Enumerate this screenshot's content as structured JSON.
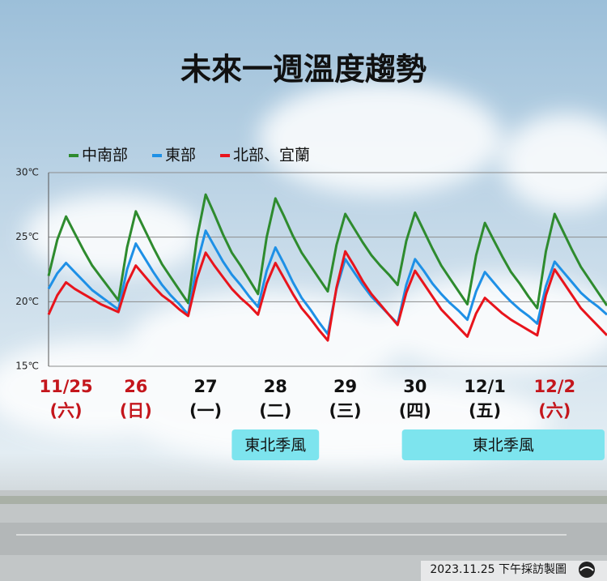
{
  "chart_data": {
    "type": "line",
    "title": "未來一週溫度趨勢",
    "footer": "2023.11.25 下午採訪製圖",
    "ylim": [
      15,
      30
    ],
    "yticks": [
      {
        "value": 15,
        "label": "15℃"
      },
      {
        "value": 20,
        "label": "20℃"
      },
      {
        "value": 25,
        "label": "25℃"
      },
      {
        "value": 30,
        "label": "30℃"
      }
    ],
    "grid": true,
    "legend": "top-left",
    "categories": [
      null,
      null,
      "11/25",
      null,
      null,
      null,
      null,
      null,
      null,
      null,
      "26",
      null,
      null,
      null,
      null,
      null,
      null,
      null,
      "27",
      null,
      null,
      null,
      null,
      null,
      null,
      null,
      "28",
      null,
      null,
      null,
      null,
      null,
      null,
      null,
      "29",
      null,
      null,
      null,
      null,
      null,
      null,
      null,
      "30",
      null,
      null,
      null,
      null,
      null,
      null,
      null,
      "12/1",
      null,
      null,
      null,
      null,
      null,
      null,
      null,
      "12/2",
      null,
      null,
      null,
      null,
      null,
      null
    ],
    "category_sublabels": [
      null,
      null,
      "(六)",
      null,
      null,
      null,
      null,
      null,
      null,
      null,
      "(日)",
      null,
      null,
      null,
      null,
      null,
      null,
      null,
      "(一)",
      null,
      null,
      null,
      null,
      null,
      null,
      null,
      "(二)",
      null,
      null,
      null,
      null,
      null,
      null,
      null,
      "(三)",
      null,
      null,
      null,
      null,
      null,
      null,
      null,
      "(四)",
      null,
      null,
      null,
      null,
      null,
      null,
      null,
      "(五)",
      null,
      null,
      null,
      null,
      null,
      null,
      null,
      "(六)",
      null,
      null,
      null,
      null,
      null,
      null
    ],
    "highlight_categories": [
      "11/25",
      "26",
      "12/2"
    ],
    "highlight_color": "#c4161c",
    "series": [
      {
        "name": "中南部",
        "color": "#2e8b2e",
        "values": [
          22.0,
          24.8,
          26.6,
          25.3,
          24.0,
          22.8,
          21.9,
          21.0,
          20.1,
          24.2,
          27.0,
          25.6,
          24.2,
          22.9,
          21.9,
          20.9,
          19.9,
          24.9,
          28.3,
          26.8,
          25.2,
          23.8,
          22.8,
          21.7,
          20.6,
          25.0,
          28.0,
          26.6,
          25.1,
          23.8,
          22.8,
          21.8,
          20.8,
          24.4,
          26.8,
          25.7,
          24.6,
          23.6,
          22.8,
          22.1,
          21.3,
          24.7,
          26.9,
          25.5,
          24.1,
          22.8,
          21.8,
          20.8,
          19.8,
          23.6,
          26.1,
          24.8,
          23.5,
          22.3,
          21.4,
          20.4,
          19.5,
          23.9,
          26.8,
          25.4,
          24.0,
          22.7,
          21.7,
          20.7,
          19.7
        ]
      },
      {
        "name": "東部",
        "color": "#1e90e6",
        "values": [
          21.0,
          22.2,
          23.0,
          22.3,
          21.6,
          20.9,
          20.4,
          19.9,
          19.4,
          22.5,
          24.5,
          23.4,
          22.3,
          21.3,
          20.5,
          19.8,
          19.0,
          22.9,
          25.5,
          24.3,
          23.1,
          22.1,
          21.3,
          20.4,
          19.6,
          22.4,
          24.2,
          22.9,
          21.5,
          20.3,
          19.4,
          18.4,
          17.5,
          21.0,
          23.3,
          22.3,
          21.3,
          20.4,
          19.7,
          19.0,
          18.3,
          21.3,
          23.3,
          22.4,
          21.4,
          20.6,
          19.9,
          19.3,
          18.6,
          20.8,
          22.3,
          21.5,
          20.7,
          20.0,
          19.4,
          18.9,
          18.3,
          21.2,
          23.1,
          22.3,
          21.5,
          20.7,
          20.1,
          19.6,
          19.0
        ]
      },
      {
        "name": "北部、宜蘭",
        "color": "#e8141c",
        "values": [
          19.0,
          20.5,
          21.5,
          21.0,
          20.6,
          20.2,
          19.8,
          19.5,
          19.2,
          21.4,
          22.8,
          22.0,
          21.2,
          20.5,
          20.0,
          19.4,
          18.9,
          21.8,
          23.8,
          22.8,
          21.9,
          21.0,
          20.3,
          19.7,
          19.0,
          21.4,
          23.0,
          21.8,
          20.6,
          19.5,
          18.7,
          17.8,
          17.0,
          21.1,
          23.9,
          22.8,
          21.6,
          20.6,
          19.8,
          19.0,
          18.2,
          20.7,
          22.4,
          21.4,
          20.4,
          19.4,
          18.7,
          18.0,
          17.3,
          19.1,
          20.3,
          19.7,
          19.1,
          18.6,
          18.2,
          17.8,
          17.4,
          20.5,
          22.5,
          21.5,
          20.5,
          19.5,
          18.8,
          18.1,
          17.4
        ]
      }
    ],
    "annotations": [
      {
        "text": "東北季風",
        "start": 21,
        "end": 31
      },
      {
        "text": "東北季風",
        "start": 40.5,
        "end": 64
      }
    ]
  }
}
